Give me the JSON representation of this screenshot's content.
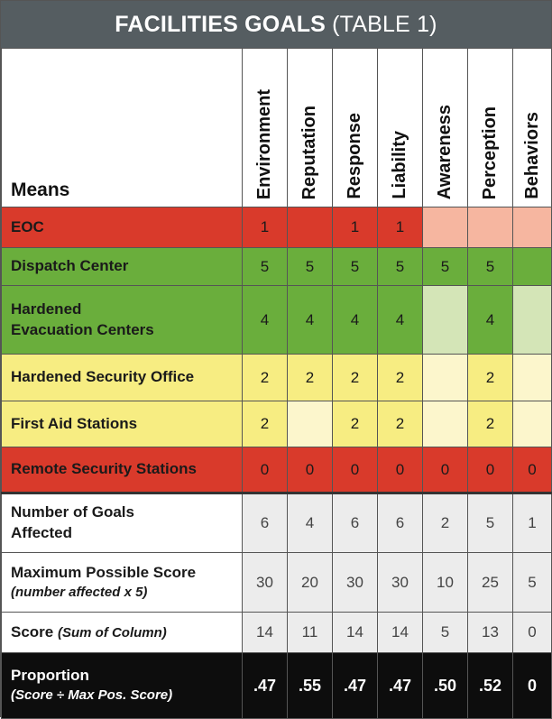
{
  "title": {
    "main": "FACILITIES GOALS",
    "sub": "(TABLE 1)"
  },
  "header": {
    "means": "Means",
    "goals": [
      "Environment",
      "Reputation",
      "Response",
      "Liability",
      "Awareness",
      "Perception",
      "Behaviors"
    ]
  },
  "rows": [
    {
      "label": "EOC",
      "values": [
        "1",
        "",
        "1",
        "1",
        "",
        "",
        ""
      ]
    },
    {
      "label": "Dispatch Center",
      "values": [
        "5",
        "5",
        "5",
        "5",
        "5",
        "5",
        ""
      ]
    },
    {
      "label_line1": "Hardened",
      "label_line2": "Evacuation Centers",
      "values": [
        "4",
        "4",
        "4",
        "4",
        "",
        "4",
        ""
      ]
    },
    {
      "label": "Hardened Security Office",
      "values": [
        "2",
        "2",
        "2",
        "2",
        "",
        "2",
        ""
      ]
    },
    {
      "label": "First Aid Stations",
      "values": [
        "2",
        "",
        "2",
        "2",
        "",
        "2",
        ""
      ]
    },
    {
      "label": "Remote Security Stations",
      "values": [
        "0",
        "0",
        "0",
        "0",
        "0",
        "0",
        "0"
      ]
    }
  ],
  "summary": {
    "goals_affected": {
      "line1": "Number of Goals",
      "line2": "Affected",
      "values": [
        "6",
        "4",
        "6",
        "6",
        "2",
        "5",
        "1"
      ]
    },
    "max_score": {
      "line1": "Maximum Possible Score",
      "line2": "(number affected x 5)",
      "values": [
        "30",
        "20",
        "30",
        "30",
        "10",
        "25",
        "5"
      ]
    },
    "score": {
      "label": "Score",
      "sub": "(Sum of Column)",
      "values": [
        "14",
        "11",
        "14",
        "14",
        "5",
        "13",
        "0"
      ]
    },
    "proportion": {
      "line1": "Proportion",
      "line2": "(Score ÷ Max Pos. Score)",
      "values": [
        ".47",
        ".55",
        ".47",
        ".47",
        ".50",
        ".52",
        "0"
      ]
    }
  },
  "colors": {
    "red": "#d93a2b",
    "pale_red": "#f6b6a0",
    "green": "#6aae3c",
    "pale_green": "#d4e5b7",
    "yellow": "#f7ed82",
    "pale_yellow": "#fcf6cc",
    "title_bar": "#555d61",
    "proportion_bar": "#0d0d0d"
  }
}
